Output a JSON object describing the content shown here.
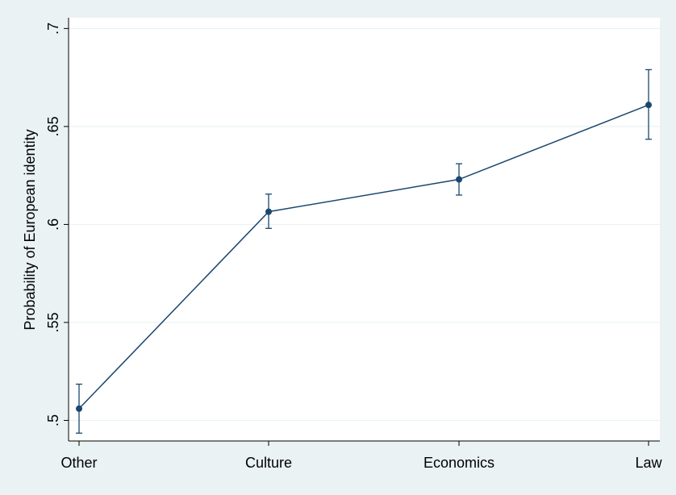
{
  "chart_data": {
    "type": "line",
    "title": "",
    "xlabel": "",
    "ylabel": "Probability of European identity",
    "categories": [
      "Other",
      "Culture",
      "Economics",
      "Law"
    ],
    "series": [
      {
        "values": [
          0.506,
          0.6065,
          0.623,
          0.661
        ],
        "ci_low": [
          0.4935,
          0.598,
          0.615,
          0.6435
        ],
        "ci_high": [
          0.5185,
          0.6155,
          0.631,
          0.679
        ]
      }
    ],
    "yticks": [
      0.5,
      0.55,
      0.6,
      0.65,
      0.7
    ],
    "ytick_labels": [
      ".5",
      ".55",
      ".6",
      ".65",
      ".7"
    ],
    "ylim": [
      0.4895,
      0.7055
    ],
    "grid": true,
    "error_bars": true,
    "colors": {
      "line": "#1a476f",
      "background": "#eaf2f3",
      "plot_area": "#ffffff",
      "grid": "#eaf2f3"
    }
  }
}
